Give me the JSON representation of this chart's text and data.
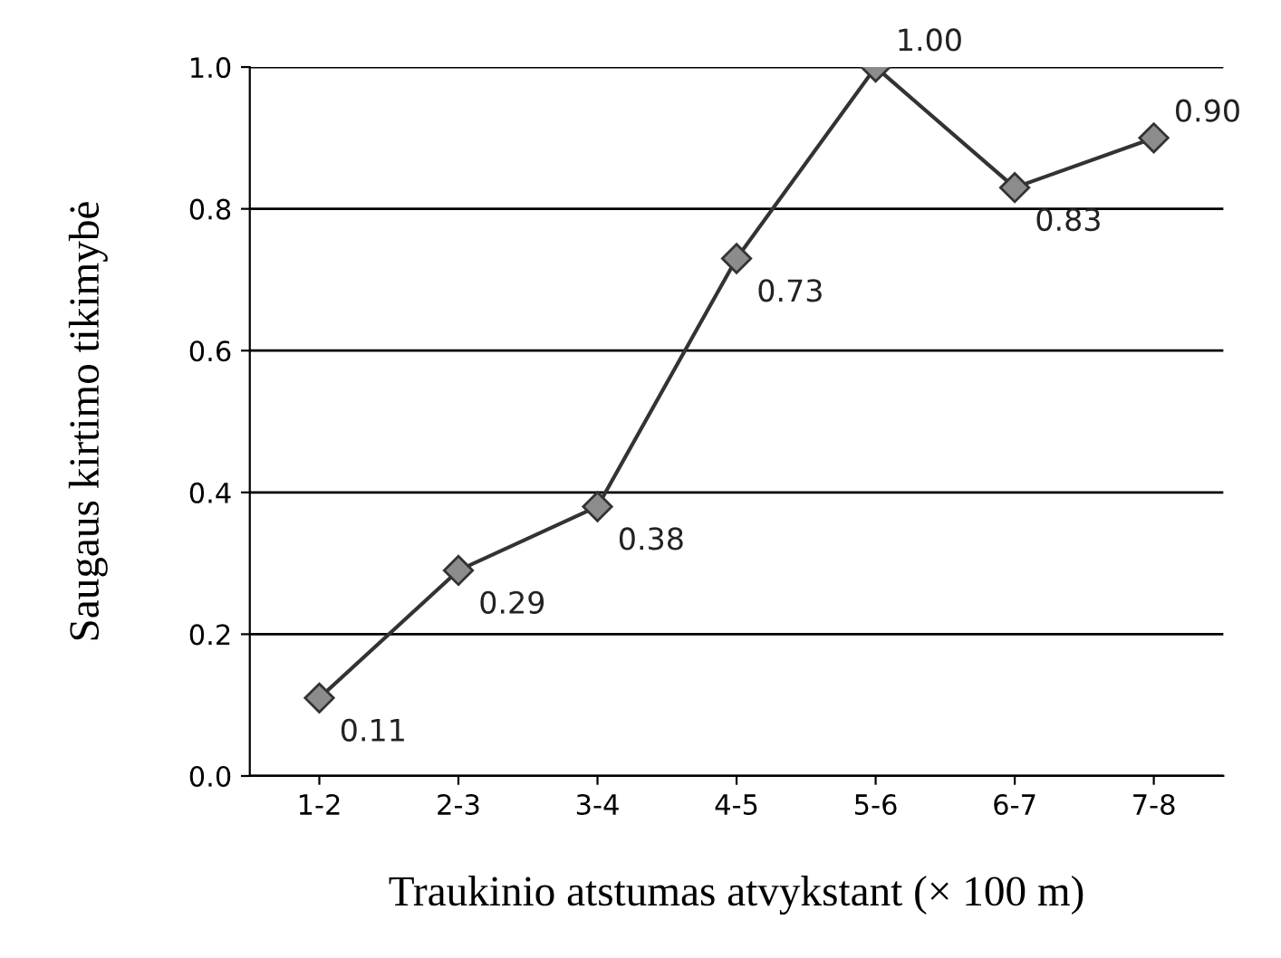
{
  "chart_data": {
    "type": "line",
    "xlabel": "Traukinio atstumas atvykstant (× 100 m)",
    "ylabel": "Saugaus kirtimo tikimybė",
    "categories": [
      "1-2",
      "2-3",
      "3-4",
      "4-5",
      "5-6",
      "6-7",
      "7-8"
    ],
    "series": [
      {
        "color": "#8c8c8c",
        "values": [
          0.11,
          0.29,
          0.38,
          0.73,
          1.0,
          0.83,
          0.9
        ],
        "value_labels": [
          "0.11",
          "0.29",
          "0.38",
          "0.73",
          "1.00",
          "0.83",
          "0.90"
        ]
      }
    ],
    "ylim": [
      0,
      1.0
    ],
    "yticks": [
      {
        "value": 0,
        "label": "0.0"
      },
      {
        "value": 0.2,
        "label": "0.2"
      },
      {
        "value": 0.4,
        "label": "0.4"
      },
      {
        "value": 0.6,
        "label": "0.6"
      },
      {
        "value": 0.8,
        "label": "0.8"
      },
      {
        "value": 1.0,
        "label": "1.0"
      }
    ],
    "grid": "y",
    "marker": "diamond",
    "line_style": "solid",
    "legend": false
  }
}
